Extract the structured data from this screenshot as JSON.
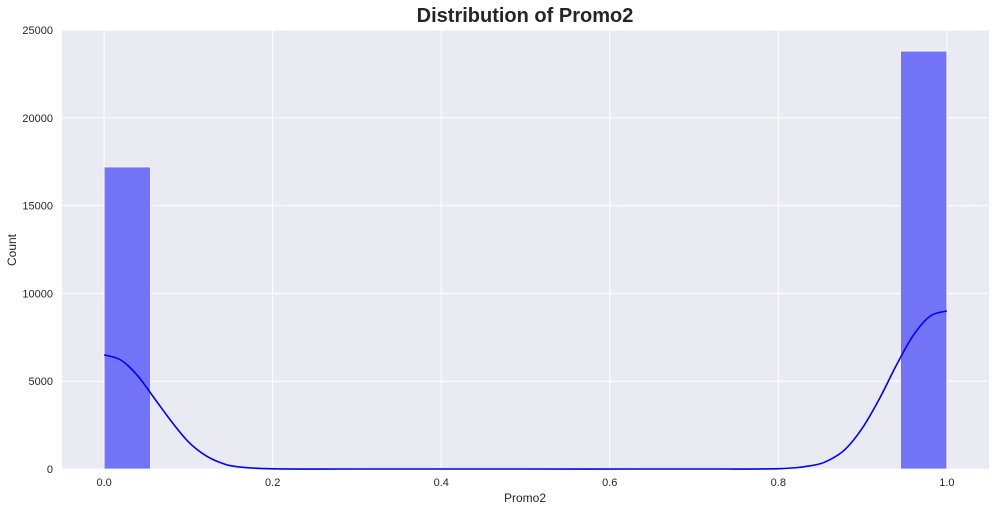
{
  "chart_data": {
    "type": "bar",
    "title": "Distribution of Promo2",
    "xlabel": "Promo2",
    "ylabel": "Count",
    "xlim": [
      -0.05,
      1.05
    ],
    "ylim": [
      0,
      25000
    ],
    "xticks": [
      0.0,
      0.2,
      0.4,
      0.6,
      0.8,
      1.0
    ],
    "xtick_labels": [
      "0.0",
      "0.2",
      "0.4",
      "0.6",
      "0.8",
      "1.0"
    ],
    "yticks": [
      0,
      5000,
      10000,
      15000,
      20000,
      25000
    ],
    "ytick_labels": [
      "0",
      "5000",
      "10000",
      "15000",
      "20000",
      "25000"
    ],
    "grid": true,
    "bins": [
      {
        "x0": 0.0,
        "x1": 0.055,
        "count": 17200
      },
      {
        "x0": 0.945,
        "x1": 1.0,
        "count": 23800
      }
    ],
    "kde": {
      "x": [
        0.0,
        0.02,
        0.04,
        0.06,
        0.08,
        0.1,
        0.12,
        0.14,
        0.16,
        0.2,
        0.3,
        0.5,
        0.7,
        0.8,
        0.84,
        0.86,
        0.88,
        0.9,
        0.92,
        0.94,
        0.96,
        0.98,
        1.0
      ],
      "y": [
        6500,
        6200,
        5300,
        4000,
        2700,
        1550,
        780,
        330,
        120,
        10,
        0,
        0,
        0,
        20,
        200,
        500,
        1150,
        2350,
        4000,
        5900,
        7600,
        8700,
        9000
      ]
    },
    "colors": {
      "bar": "#7373f7",
      "line": "#0000ff",
      "plot_background": "#eaeaf2",
      "grid": "#ffffff"
    }
  }
}
